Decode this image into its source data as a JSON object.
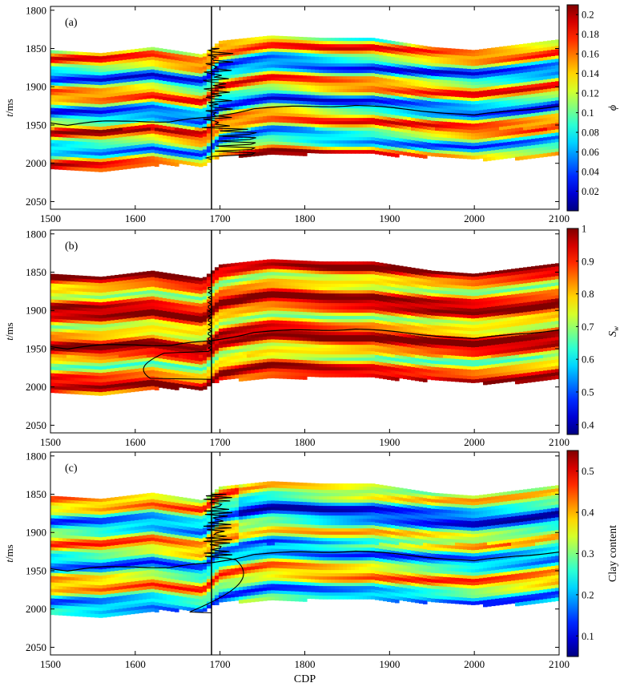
{
  "chart_data": [
    {
      "type": "heatmap",
      "panel_label": "(a)",
      "variable": "ϕ",
      "ylabel": "t/ms",
      "xlabel": "",
      "xlim": [
        1500,
        2100
      ],
      "ylim": [
        2060,
        1795
      ],
      "xticks": [
        1500,
        1600,
        1700,
        1800,
        1900,
        2000,
        2100
      ],
      "yticks": [
        1800,
        1850,
        1900,
        1950,
        2000,
        2050
      ],
      "colormap": "jet",
      "colorbar_label": "ϕ",
      "colorbar_range": [
        0.0,
        0.21
      ],
      "colorbar_ticks": [
        0.02,
        0.04,
        0.06,
        0.08,
        0.1,
        0.12,
        0.14,
        0.16,
        0.18,
        0.2
      ],
      "colorbar_tick_labels": [
        "0.02",
        "0.04",
        "0.06",
        "0.08",
        "0.1",
        "0.12",
        "0.14",
        "0.16",
        "0.18",
        "0.2"
      ],
      "well_cdp": 1690,
      "well_log_range": [
        1850,
        1995
      ],
      "horizon": {
        "cdp": [
          1500,
          1520,
          1560,
          1600,
          1640,
          1690,
          1740,
          1800,
          1860,
          1900,
          1950,
          2000,
          2050,
          2100
        ],
        "t": [
          1946,
          1950,
          1946,
          1944,
          1946,
          1940,
          1928,
          1926,
          1924,
          1928,
          1932,
          1938,
          1930,
          1926
        ]
      },
      "data_extent": {
        "cdp": [
          1500,
          1560,
          1620,
          1680,
          1700,
          1760,
          1820,
          1880,
          1950,
          2000,
          2050,
          2100
        ],
        "top": [
          1852,
          1856,
          1848,
          1858,
          1840,
          1833,
          1836,
          1836,
          1848,
          1852,
          1845,
          1838
        ],
        "base": [
          2004,
          2010,
          2000,
          2000,
          1988,
          1988,
          1985,
          1986,
          1990,
          1993,
          1992,
          1988
        ]
      }
    },
    {
      "type": "heatmap",
      "panel_label": "(b)",
      "variable": "Sw",
      "ylabel": "t/ms",
      "xlabel": "",
      "xlim": [
        1500,
        2100
      ],
      "ylim": [
        2060,
        1795
      ],
      "xticks": [
        1500,
        1600,
        1700,
        1800,
        1900,
        2000,
        2100
      ],
      "yticks": [
        1800,
        1850,
        1900,
        1950,
        2000,
        2050
      ],
      "colormap": "jet",
      "colorbar_label": "Sw",
      "colorbar_range": [
        0.37,
        1.0
      ],
      "colorbar_ticks": [
        0.4,
        0.5,
        0.6,
        0.7,
        0.8,
        0.9,
        1.0
      ],
      "colorbar_tick_labels": [
        "0.4",
        "0.5",
        "0.6",
        "0.7",
        "0.8",
        "0.9",
        "1"
      ],
      "well_cdp": 1690,
      "well_log_range": [
        1870,
        1990
      ],
      "horizon": {
        "cdp": [
          1500,
          1520,
          1560,
          1600,
          1640,
          1690,
          1740,
          1800,
          1860,
          1900,
          1950,
          2000,
          2050,
          2100
        ],
        "t": [
          1946,
          1950,
          1946,
          1944,
          1946,
          1940,
          1928,
          1926,
          1924,
          1928,
          1932,
          1938,
          1930,
          1926
        ]
      },
      "data_extent": {
        "cdp": [
          1500,
          1560,
          1620,
          1680,
          1700,
          1760,
          1820,
          1880,
          1950,
          2000,
          2050,
          2100
        ],
        "top": [
          1852,
          1856,
          1848,
          1858,
          1840,
          1833,
          1836,
          1836,
          1848,
          1852,
          1845,
          1838
        ],
        "base": [
          2004,
          2010,
          2000,
          2000,
          1988,
          1988,
          1985,
          1986,
          1990,
          1993,
          1992,
          1988
        ]
      }
    },
    {
      "type": "heatmap",
      "panel_label": "(c)",
      "variable": "Clay content",
      "ylabel": "t/ms",
      "xlabel": "CDP",
      "xlim": [
        1500,
        2100
      ],
      "ylim": [
        2060,
        1795
      ],
      "xticks": [
        1500,
        1600,
        1700,
        1800,
        1900,
        2000,
        2100
      ],
      "yticks": [
        1800,
        1850,
        1900,
        1950,
        2000,
        2050
      ],
      "colormap": "jet",
      "colorbar_label": "Clay content",
      "colorbar_range": [
        0.05,
        0.55
      ],
      "colorbar_ticks": [
        0.1,
        0.2,
        0.3,
        0.4,
        0.5
      ],
      "colorbar_tick_labels": [
        "0.1",
        "0.2",
        "0.3",
        "0.4",
        "0.5"
      ],
      "well_cdp": 1690,
      "well_log_range": [
        1850,
        2005
      ],
      "horizon": {
        "cdp": [
          1500,
          1520,
          1560,
          1600,
          1640,
          1690,
          1740,
          1800,
          1860,
          1900,
          1950,
          2000,
          2050,
          2100
        ],
        "t": [
          1946,
          1950,
          1946,
          1944,
          1946,
          1940,
          1928,
          1926,
          1924,
          1928,
          1932,
          1938,
          1930,
          1926
        ]
      },
      "data_extent": {
        "cdp": [
          1500,
          1560,
          1620,
          1680,
          1700,
          1760,
          1820,
          1880,
          1950,
          2000,
          2050,
          2100
        ],
        "top": [
          1852,
          1856,
          1848,
          1858,
          1840,
          1833,
          1836,
          1836,
          1848,
          1852,
          1845,
          1838
        ],
        "base": [
          2004,
          2010,
          2000,
          2000,
          1988,
          1988,
          1985,
          1986,
          1990,
          1993,
          1992,
          1988
        ]
      }
    }
  ]
}
